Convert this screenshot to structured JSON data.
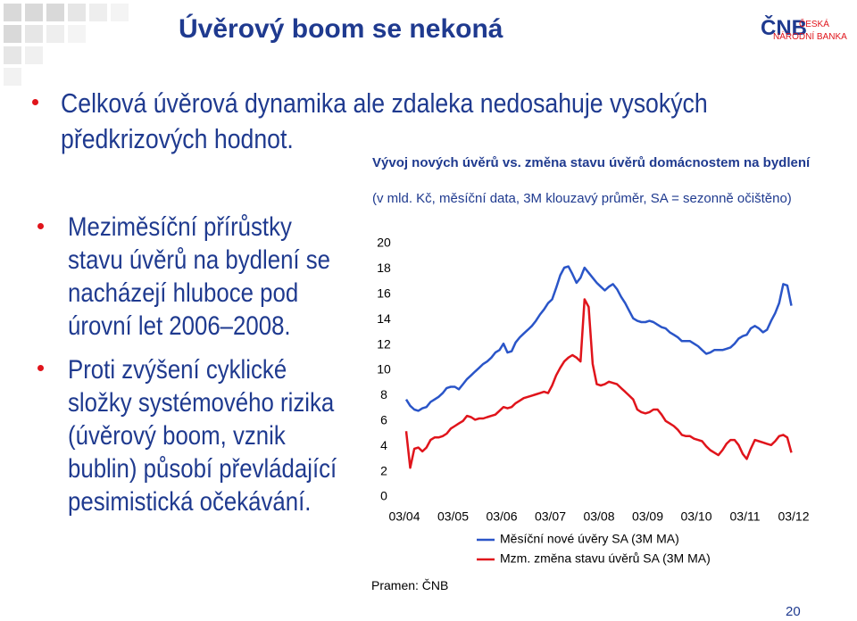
{
  "title": "Úvěrový boom se nekoná",
  "logo": {
    "mark": "ČNB",
    "name_line1": "ČESKÁ",
    "name_line2": "NÁRODNÍ BANKA"
  },
  "bullets": [
    "Celková úvěrová dynamika ale zdaleka nedosahuje vysokých předkrizových hodnot.",
    "Meziměsíční přírůstky stavu úvěrů na bydlení se nacházejí hluboce pod úrovní let 2006–2008.",
    "Proti zvýšení cyklické složky systémového rizika (úvěrový boom, vznik bublin) působí převládající pesimistická očekávání."
  ],
  "page_number": "20",
  "chart_data": {
    "type": "line",
    "title": "Vývoj nových úvěrů vs. změna stavu úvěrů domácnostem na bydlení",
    "subtitle": "(v mld. Kč, měsíční data, 3M klouzavý průměr, SA = sezonně očištěno)",
    "source": "Pramen: ČNB",
    "categories": [
      "03/04",
      null,
      null,
      null,
      null,
      null,
      null,
      null,
      null,
      null,
      null,
      null,
      "03/05",
      null,
      null,
      null,
      null,
      null,
      null,
      null,
      null,
      null,
      null,
      null,
      "03/06",
      null,
      null,
      null,
      null,
      null,
      null,
      null,
      null,
      null,
      null,
      null,
      "03/07",
      null,
      null,
      null,
      null,
      null,
      null,
      null,
      null,
      null,
      null,
      null,
      "03/08",
      null,
      null,
      null,
      null,
      null,
      null,
      null,
      null,
      null,
      null,
      null,
      "03/09",
      null,
      null,
      null,
      null,
      null,
      null,
      null,
      null,
      null,
      null,
      null,
      "03/10",
      null,
      null,
      null,
      null,
      null,
      null,
      null,
      null,
      null,
      null,
      null,
      "03/11",
      null,
      null,
      null,
      null,
      null,
      null,
      null,
      null,
      null,
      null,
      null,
      "03/12"
    ],
    "series": [
      {
        "name": "Měsíční nové úvěry SA (3M MA)",
        "color": "#2a55c8",
        "values": [
          7.7,
          7.2,
          6.9,
          6.8,
          7.0,
          7.1,
          7.5,
          7.7,
          7.9,
          8.2,
          8.6,
          8.7,
          8.7,
          8.5,
          8.9,
          9.3,
          9.6,
          9.9,
          10.2,
          10.5,
          10.7,
          11.0,
          11.4,
          11.6,
          12.1,
          11.4,
          11.5,
          12.2,
          12.6,
          12.9,
          13.2,
          13.5,
          13.9,
          14.4,
          14.8,
          15.3,
          15.6,
          16.5,
          17.5,
          18.1,
          18.2,
          17.6,
          16.9,
          17.3,
          18.1,
          17.7,
          17.3,
          16.9,
          16.6,
          16.3,
          16.6,
          16.8,
          16.4,
          15.8,
          15.3,
          14.7,
          14.1,
          13.9,
          13.8,
          13.8,
          13.9,
          13.8,
          13.6,
          13.4,
          13.3,
          13.0,
          12.8,
          12.6,
          12.3,
          12.3,
          12.3,
          12.1,
          11.9,
          11.6,
          11.3,
          11.4,
          11.6,
          11.6,
          11.6,
          11.7,
          11.8,
          12.1,
          12.5,
          12.7,
          12.8,
          13.3,
          13.5,
          13.3,
          13.0,
          13.2,
          13.9,
          14.5,
          15.3,
          16.8,
          16.7,
          15.1,
          null
        ]
      },
      {
        "name": "Mzm. změna stavu úvěrů SA (3M MA)",
        "color": "#e0141b",
        "values": [
          5.2,
          2.3,
          3.8,
          3.9,
          3.6,
          3.9,
          4.5,
          4.7,
          4.7,
          4.8,
          5.0,
          5.4,
          5.6,
          5.8,
          6.0,
          6.4,
          6.3,
          6.1,
          6.2,
          6.2,
          6.3,
          6.4,
          6.5,
          6.8,
          7.1,
          7.0,
          7.1,
          7.4,
          7.6,
          7.8,
          7.9,
          8.0,
          8.1,
          8.2,
          8.3,
          8.2,
          8.8,
          9.6,
          10.2,
          10.7,
          11.0,
          11.2,
          11.0,
          10.7,
          15.6,
          15.0,
          10.5,
          8.9,
          8.8,
          8.9,
          9.1,
          9.0,
          8.9,
          8.6,
          8.3,
          8.0,
          7.7,
          6.9,
          6.7,
          6.6,
          6.7,
          6.9,
          6.9,
          6.5,
          6.0,
          5.8,
          5.6,
          5.3,
          4.9,
          4.8,
          4.8,
          4.6,
          4.5,
          4.4,
          4.0,
          3.7,
          3.5,
          3.3,
          3.7,
          4.2,
          4.5,
          4.5,
          4.1,
          3.4,
          3.0,
          3.8,
          4.5,
          4.4,
          4.3,
          4.2,
          4.1,
          4.4,
          4.8,
          4.9,
          4.7,
          3.5,
          null
        ]
      }
    ],
    "ylim": [
      0,
      20
    ],
    "yticks": [
      0,
      2,
      4,
      6,
      8,
      10,
      12,
      14,
      16,
      18,
      20
    ],
    "grid": false
  }
}
